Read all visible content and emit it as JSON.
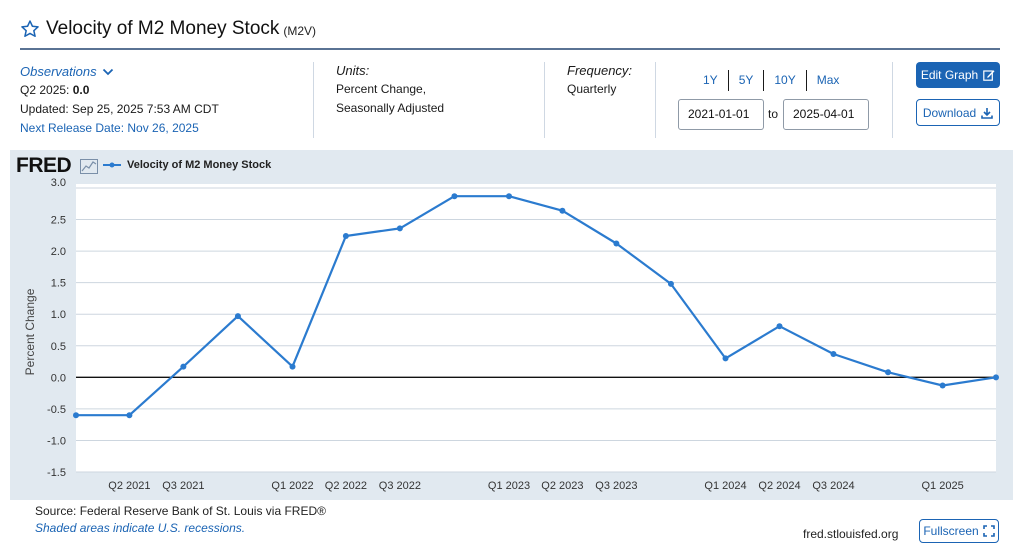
{
  "header": {
    "title": "Velocity of M2 Money Stock",
    "series_code": "(M2V)"
  },
  "observations": {
    "link_label": "Observations",
    "period_label": "Q2 2025:",
    "period_value": "0.0",
    "updated": "Updated: Sep 25, 2025 7:53 AM CDT",
    "next_release": "Next Release Date: Nov 26, 2025"
  },
  "units": {
    "label": "Units:",
    "line1": "Percent Change,",
    "line2": "Seasonally Adjusted"
  },
  "frequency": {
    "label": "Frequency:",
    "value": "Quarterly"
  },
  "range_buttons": [
    "1Y",
    "5Y",
    "10Y",
    "Max"
  ],
  "date_range": {
    "start": "2021-01-01",
    "to_label": "to",
    "end": "2025-04-01"
  },
  "buttons": {
    "edit_graph": "Edit Graph",
    "download": "Download",
    "fullscreen": "Fullscreen"
  },
  "chart_header": {
    "logo": "FRED"
  },
  "footer": {
    "source": "Source: Federal Reserve Bank of St. Louis via FRED®",
    "shaded_note": "Shaded areas indicate U.S. recessions.",
    "site": "fred.stlouisfed.org"
  },
  "colors": {
    "accent": "#1b64b4",
    "series_line": "#2b7bcf",
    "panel_bg": "#e1e9f0",
    "title_rule": "#5a7394"
  },
  "icons": {
    "favorite": "star-icon",
    "observations_toggle": "chevron-down-icon",
    "edit": "edit-icon",
    "download": "download-icon",
    "fullscreen": "fullscreen-icon",
    "graph": "graph-icon"
  },
  "chart_data": {
    "type": "line",
    "title": "",
    "ylabel": "Percent Change",
    "xlabel": "",
    "ylim": [
      -1.5,
      3.0
    ],
    "yticks": [
      3.0,
      2.5,
      2.0,
      1.5,
      1.0,
      0.5,
      0.0,
      -0.5,
      -1.0,
      -1.5
    ],
    "ytick_labels": [
      "3.0",
      "2.5",
      "2.0",
      "1.5",
      "1.0",
      "0.5",
      "0.0",
      "-0.5",
      "-1.0",
      "-1.5"
    ],
    "xtick_labels": [
      "Q2 2021",
      "Q3 2021",
      "Q1 2022",
      "Q2 2022",
      "Q3 2022",
      "Q1 2023",
      "Q2 2023",
      "Q3 2023",
      "Q1 2024",
      "Q2 2024",
      "Q3 2024",
      "Q1 2025"
    ],
    "xtick_quarters": [
      "2021-04-01",
      "2021-07-01",
      "2022-01-01",
      "2022-04-01",
      "2022-07-01",
      "2023-01-01",
      "2023-04-01",
      "2023-07-01",
      "2024-01-01",
      "2024-04-01",
      "2024-07-01",
      "2025-01-01"
    ],
    "grid": true,
    "legend": "top-left",
    "series": [
      {
        "name": "Velocity of M2 Money Stock",
        "x": [
          "2021-01-01",
          "2021-04-01",
          "2021-07-01",
          "2021-10-01",
          "2022-01-01",
          "2022-04-01",
          "2022-07-01",
          "2022-10-01",
          "2023-01-01",
          "2023-04-01",
          "2023-07-01",
          "2023-10-01",
          "2024-01-01",
          "2024-04-01",
          "2024-07-01",
          "2024-10-01",
          "2025-01-01",
          "2025-04-01"
        ],
        "y": [
          -0.6,
          -0.6,
          0.17,
          0.97,
          0.17,
          2.24,
          2.36,
          2.87,
          2.87,
          2.64,
          2.12,
          1.48,
          0.3,
          0.81,
          0.37,
          0.08,
          -0.13,
          0.0
        ]
      }
    ]
  }
}
